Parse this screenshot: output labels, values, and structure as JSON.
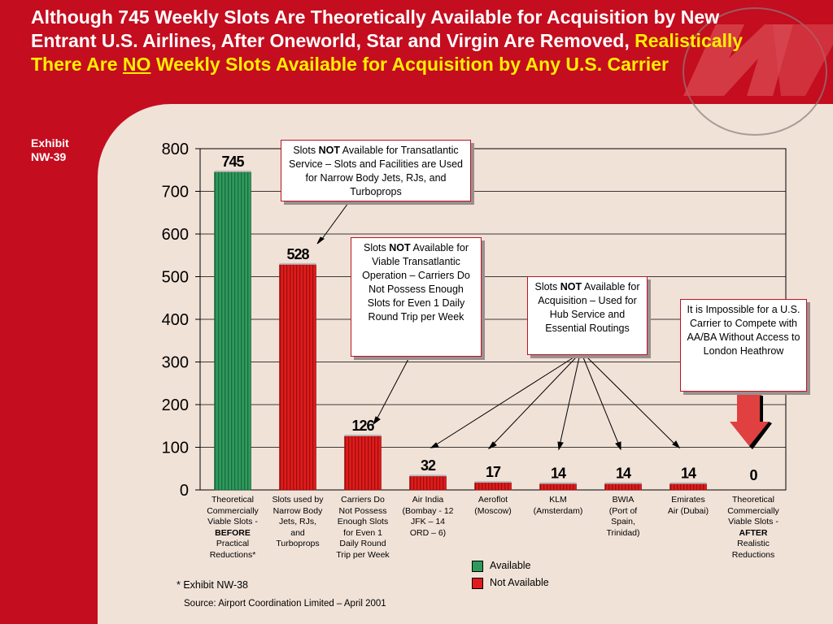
{
  "title": {
    "part1": "Although 745 Weekly Slots Are Theoretically Available for Acquisition by New Entrant U.S. Airlines, After Oneworld, Star and Virgin Are Removed,",
    "part2": "Realistically There Are",
    "part3": "NO",
    "part4": "Weekly Slots Available for Acquisition by Any U.S. Carrier"
  },
  "exhibit": {
    "line1": "Exhibit",
    "line2": "NW-39"
  },
  "colors": {
    "header_red": "#c40d1f",
    "background": "#f1e2d8",
    "available": "#2e9a5c",
    "not_available": "#e11b1b",
    "highlight": "#ffee00"
  },
  "chart_data": {
    "type": "bar",
    "ylim": [
      0,
      800
    ],
    "yticks": [
      "0",
      "100",
      "200",
      "300",
      "400",
      "500",
      "600",
      "700",
      "800"
    ],
    "values": [
      745,
      528,
      126,
      32,
      17,
      14,
      14,
      14,
      0
    ],
    "value_labels": [
      "745",
      "528",
      "126",
      "32",
      "17",
      "14",
      "14",
      "14",
      "0"
    ],
    "status": [
      "available",
      "not",
      "not",
      "not",
      "not",
      "not",
      "not",
      "not",
      "not"
    ],
    "grid": true,
    "legend": {
      "position": "bottom",
      "items": [
        "Available",
        "Not Available"
      ]
    }
  },
  "categories": [
    {
      "lines": [
        "Theoretical",
        "Commercially",
        "Viable Slots -"
      ],
      "bold": "BEFORE",
      "after": [
        "Practical",
        "Reductions*"
      ]
    },
    {
      "lines": [
        "Slots used by",
        "Narrow Body",
        "Jets, RJs,",
        "and",
        "Turboprops"
      ]
    },
    {
      "lines": [
        "Carriers Do",
        "Not Possess",
        "Enough Slots",
        "for Even 1",
        "Daily Round",
        "Trip per Week"
      ]
    },
    {
      "lines": [
        "Air India",
        "(Bombay - 12",
        "JFK – 14",
        "ORD – 6)"
      ]
    },
    {
      "lines": [
        "Aeroflot",
        "(Moscow)"
      ]
    },
    {
      "lines": [
        "KLM",
        "(Amsterdam)"
      ]
    },
    {
      "lines": [
        "BWIA",
        "(Port of",
        "Spain,",
        "Trinidad)"
      ]
    },
    {
      "lines": [
        "Emirates",
        "Air (Dubai)"
      ]
    },
    {
      "lines": [
        "Theoretical",
        "Commercially",
        "Viable Slots -"
      ],
      "bold": "AFTER",
      "after": [
        "Realistic",
        "Reductions"
      ]
    }
  ],
  "callouts": {
    "c1": {
      "pre": "Slots",
      "bold": "NOT",
      "post": "Available for Transatlantic Service – Slots and Facilities are Used for Narrow Body Jets, RJs, and Turboprops"
    },
    "c2": {
      "pre": "Slots",
      "bold": "NOT",
      "post": "Available for Viable Transatlantic Operation – Carriers Do Not Possess Enough Slots for Even 1 Daily Round Trip per Week"
    },
    "c3": {
      "pre": "Slots",
      "bold": "NOT",
      "post": "Available for Acquisition – Used for Hub Service and Essential Routings"
    },
    "c4": {
      "text": "It is Impossible for a U.S. Carrier to Compete with AA/BA Without Access to London Heathrow"
    }
  },
  "legend": {
    "available": "Available",
    "not_available": "Not Available"
  },
  "footnote": "* Exhibit NW-38",
  "source": "Source: Airport Coordination Limited – April 2001"
}
